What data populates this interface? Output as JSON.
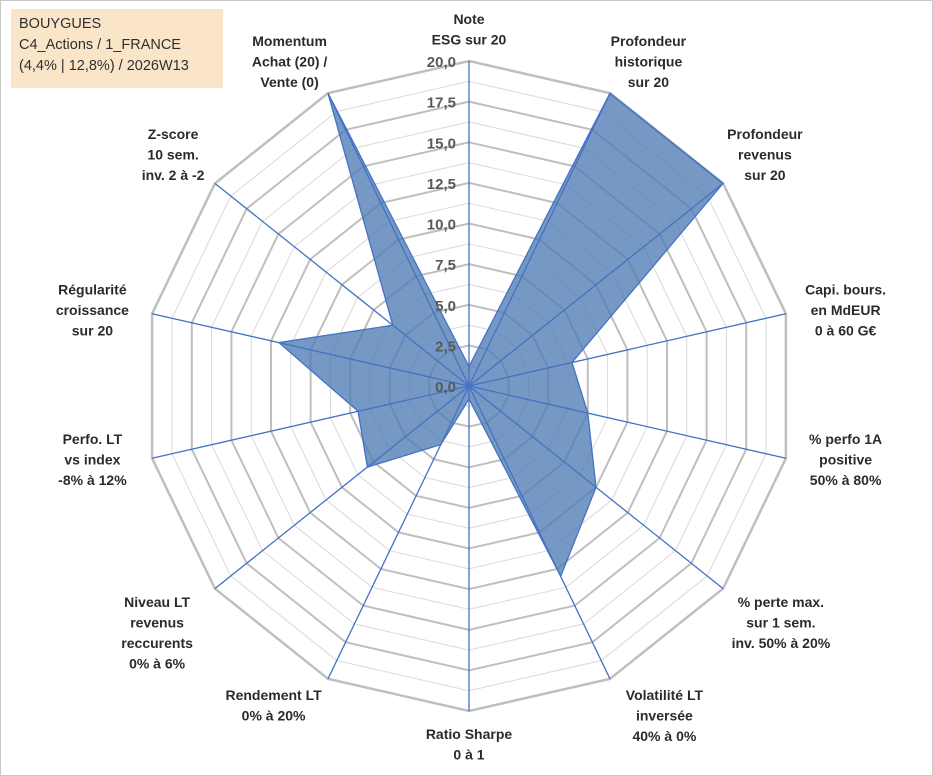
{
  "info": {
    "line1": "BOUYGUES",
    "line2": "C4_Actions / 1_FRANCE",
    "line3": "(4,4% | 12,8%) / 2026W13"
  },
  "chart_data": {
    "type": "radar",
    "title": "",
    "r_range": [
      0,
      20
    ],
    "r_ticks": [
      "0,0",
      "2,5",
      "5,0",
      "7,5",
      "10,0",
      "12,5",
      "15,0",
      "17,5",
      "20,0"
    ],
    "grid": true,
    "colors": {
      "fill": "#4f7bb3",
      "line": "#4472c4",
      "grid": "#bfbfbf",
      "minor_grid": "#d9d9d9"
    },
    "axes": [
      {
        "lines": [
          "Note",
          "ESG sur 20"
        ],
        "value": 1.2
      },
      {
        "lines": [
          "Profondeur",
          "historique",
          "sur 20"
        ],
        "value": 20.0
      },
      {
        "lines": [
          "Profondeur",
          "revenus",
          "sur 20"
        ],
        "value": 20.0
      },
      {
        "lines": [
          "Capi. bours.",
          "en MdEUR",
          "0 à 60 G€"
        ],
        "value": 6.5
      },
      {
        "lines": [
          "% perfo 1A",
          "positive",
          "50% à 80%"
        ],
        "value": 7.5
      },
      {
        "lines": [
          "% perte max.",
          "sur 1 sem.",
          "inv. 50% à 20%"
        ],
        "value": 10.0
      },
      {
        "lines": [
          "Volatilité LT",
          "inversée",
          "40% à 0%"
        ],
        "value": 13.0
      },
      {
        "lines": [
          "Ratio Sharpe",
          "0 à 1"
        ],
        "value": 0.8
      },
      {
        "lines": [
          "Rendement LT",
          "0% à 20%"
        ],
        "value": 4.0
      },
      {
        "lines": [
          "Niveau LT",
          "revenus",
          "reccurents",
          "0% à 6%"
        ],
        "value": 8.0
      },
      {
        "lines": [
          "Perfo. LT",
          "vs index",
          "-8% à 12%"
        ],
        "value": 7.0
      },
      {
        "lines": [
          "Régularité",
          "croissance",
          "sur 20"
        ],
        "value": 12.0
      },
      {
        "lines": [
          "Z-score",
          "10 sem.",
          "inv. 2 à -2"
        ],
        "value": 6.0
      },
      {
        "lines": [
          "Momentum",
          "Achat (20) /",
          "Vente (0)"
        ],
        "value": 20.0
      }
    ]
  }
}
